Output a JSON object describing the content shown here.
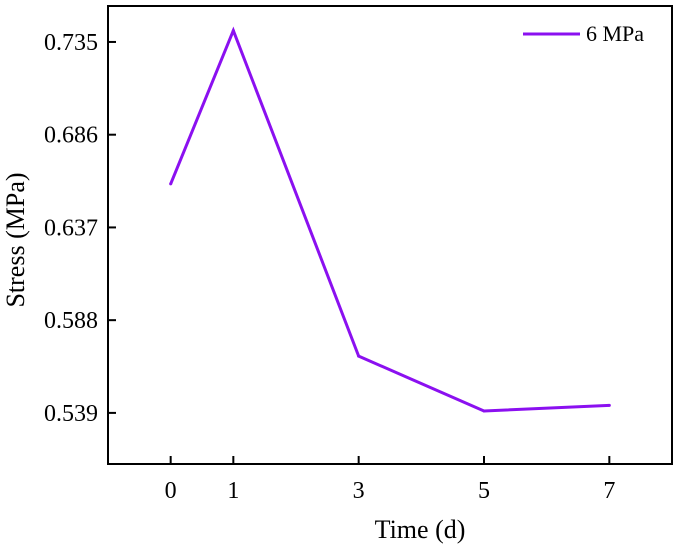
{
  "chart_data": {
    "type": "line",
    "title": "",
    "xlabel": "Time (d)",
    "ylabel": "Stress (MPa)",
    "x": [
      0,
      1,
      3,
      5,
      7
    ],
    "xticks": [
      "0",
      "1",
      "3",
      "5",
      "7"
    ],
    "xlim": [
      -1,
      8
    ],
    "ylim": [
      0.512,
      0.754
    ],
    "yticks": [
      "0.539",
      "0.588",
      "0.637",
      "0.686",
      "0.735"
    ],
    "grid": false,
    "legend_position": "top-right",
    "series": [
      {
        "name": "6 MPa",
        "color": "#8B10F0",
        "values": [
          0.66,
          0.741,
          0.569,
          0.54,
          0.543
        ]
      }
    ]
  }
}
